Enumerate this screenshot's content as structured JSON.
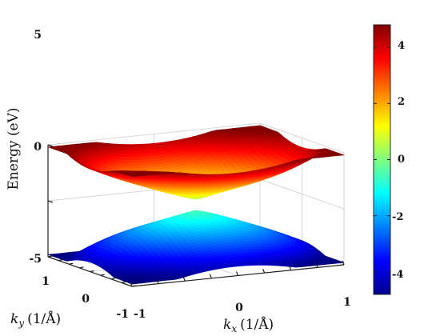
{
  "chart_data": {
    "type": "surface3d",
    "title": "",
    "xlabel": {
      "symbol": "k",
      "sub": "x",
      "unit": "(1/Å)"
    },
    "ylabel": {
      "symbol": "k",
      "sub": "y",
      "unit": "(1/Å)"
    },
    "zlabel": "Energy (eV)",
    "xlim": [
      -1,
      1
    ],
    "ylim": [
      -1,
      1
    ],
    "zlim": [
      -5,
      5
    ],
    "xticks": [
      "-1",
      "0",
      "1"
    ],
    "yticks": [
      "-1",
      "0",
      "1"
    ],
    "zticks": [
      "-5",
      "0",
      "5"
    ],
    "colorbar": {
      "range": [
        -4.8,
        4.8
      ],
      "ticks": [
        "-4",
        "-2",
        "0",
        "2",
        "4"
      ],
      "tick_values": [
        -4,
        -2,
        0,
        2,
        4
      ],
      "colormap": "jet"
    },
    "grid": true,
    "series": [
      {
        "band": "conduction",
        "sign": 1,
        "gap": 0.5,
        "max": 4.8
      },
      {
        "band": "valence",
        "sign": -1,
        "gap": 0.5,
        "max": 4.8
      }
    ]
  }
}
